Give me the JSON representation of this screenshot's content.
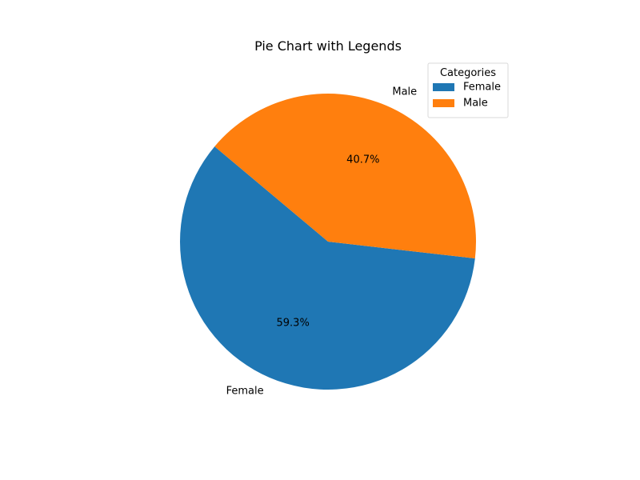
{
  "chart_data": {
    "type": "pie",
    "title": "Pie Chart with Legends",
    "categories": [
      "Female",
      "Male"
    ],
    "values": [
      59.3,
      40.7
    ],
    "percent_labels": [
      "59.3%",
      "40.7%"
    ],
    "colors": [
      "#1f77b4",
      "#ff7f0e"
    ],
    "legend": {
      "title": "Categories",
      "placement": "top-right"
    }
  }
}
